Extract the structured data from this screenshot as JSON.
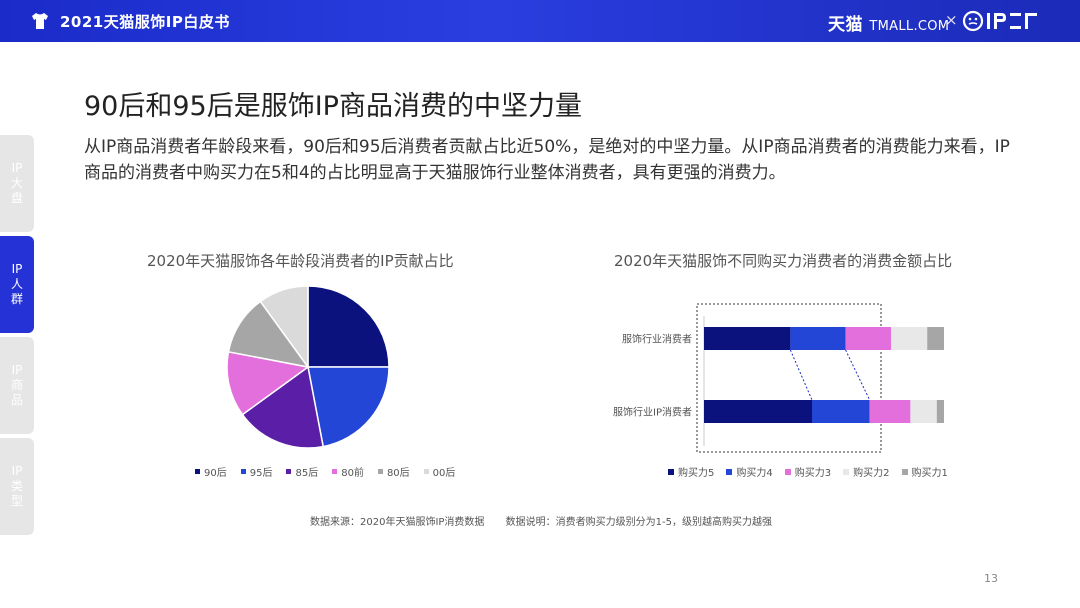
{
  "header": {
    "doc_title": "2021天猫服饰IP白皮书",
    "brand_text": "天猫",
    "brand_tmall": "TMALL.COM",
    "times": "×",
    "ip_logo_icon": "ipzz-logo-icon",
    "shirt_icon": "tshirt-icon"
  },
  "sidenav": {
    "items": [
      {
        "label": "IP大盘",
        "active": false
      },
      {
        "label": "IP人群",
        "active": true
      },
      {
        "label": "IP商品",
        "active": false
      },
      {
        "label": "IP类型",
        "active": false
      }
    ]
  },
  "title": "90后和95后是服饰IP商品消费的中坚力量",
  "summary": "从IP商品消费者年龄段来看，90后和95后消费者贡献占比近50%，是绝对的中坚力量。从IP商品消费者的消费能力来看，IP商品的消费者中购买力在5和4的占比明显高于天猫服饰行业整体消费者，具有更强的消费力。",
  "colors": {
    "accent": "#2533d6",
    "s1": "#0b127e",
    "s2": "#2446d6",
    "s3": "#5a1fa6",
    "s4": "#e36fdc",
    "s5": "#a6a6a6",
    "s6": "#dadada",
    "buy5": "#0b127e",
    "buy4": "#2446d6",
    "buy3": "#e36fdc",
    "buy2": "#e8e8e8",
    "buy1": "#a6a6a6"
  },
  "chart_data": [
    {
      "type": "pie",
      "title": "2020年天猫服饰各年龄段消费者的IP贡献占比",
      "categories": [
        "90后",
        "95后",
        "85后",
        "80前",
        "80后",
        "00后"
      ],
      "values": [
        25,
        22,
        18,
        13,
        12,
        10
      ],
      "legend": "bottom"
    },
    {
      "type": "bar",
      "orientation": "horizontal",
      "stacked": true,
      "title": "2020年天猫服饰不同购买力消费者的消费金额占比",
      "categories": [
        "服饰行业消费者",
        "服饰行业IP消费者"
      ],
      "series": [
        {
          "name": "购买力5",
          "values": [
            36,
            45
          ]
        },
        {
          "name": "购买力4",
          "values": [
            23,
            24
          ]
        },
        {
          "name": "购买力3",
          "values": [
            19,
            17
          ]
        },
        {
          "name": "购买力2",
          "values": [
            15,
            11
          ]
        },
        {
          "name": "购买力1",
          "values": [
            7,
            3
          ]
        }
      ],
      "legend": "bottom"
    }
  ],
  "footnote": {
    "source": "数据来源：2020年天猫服饰IP消费数据",
    "note": "数据说明：消费者购买力级别分为1-5，级别越高购买力越强"
  },
  "page_number": "13"
}
